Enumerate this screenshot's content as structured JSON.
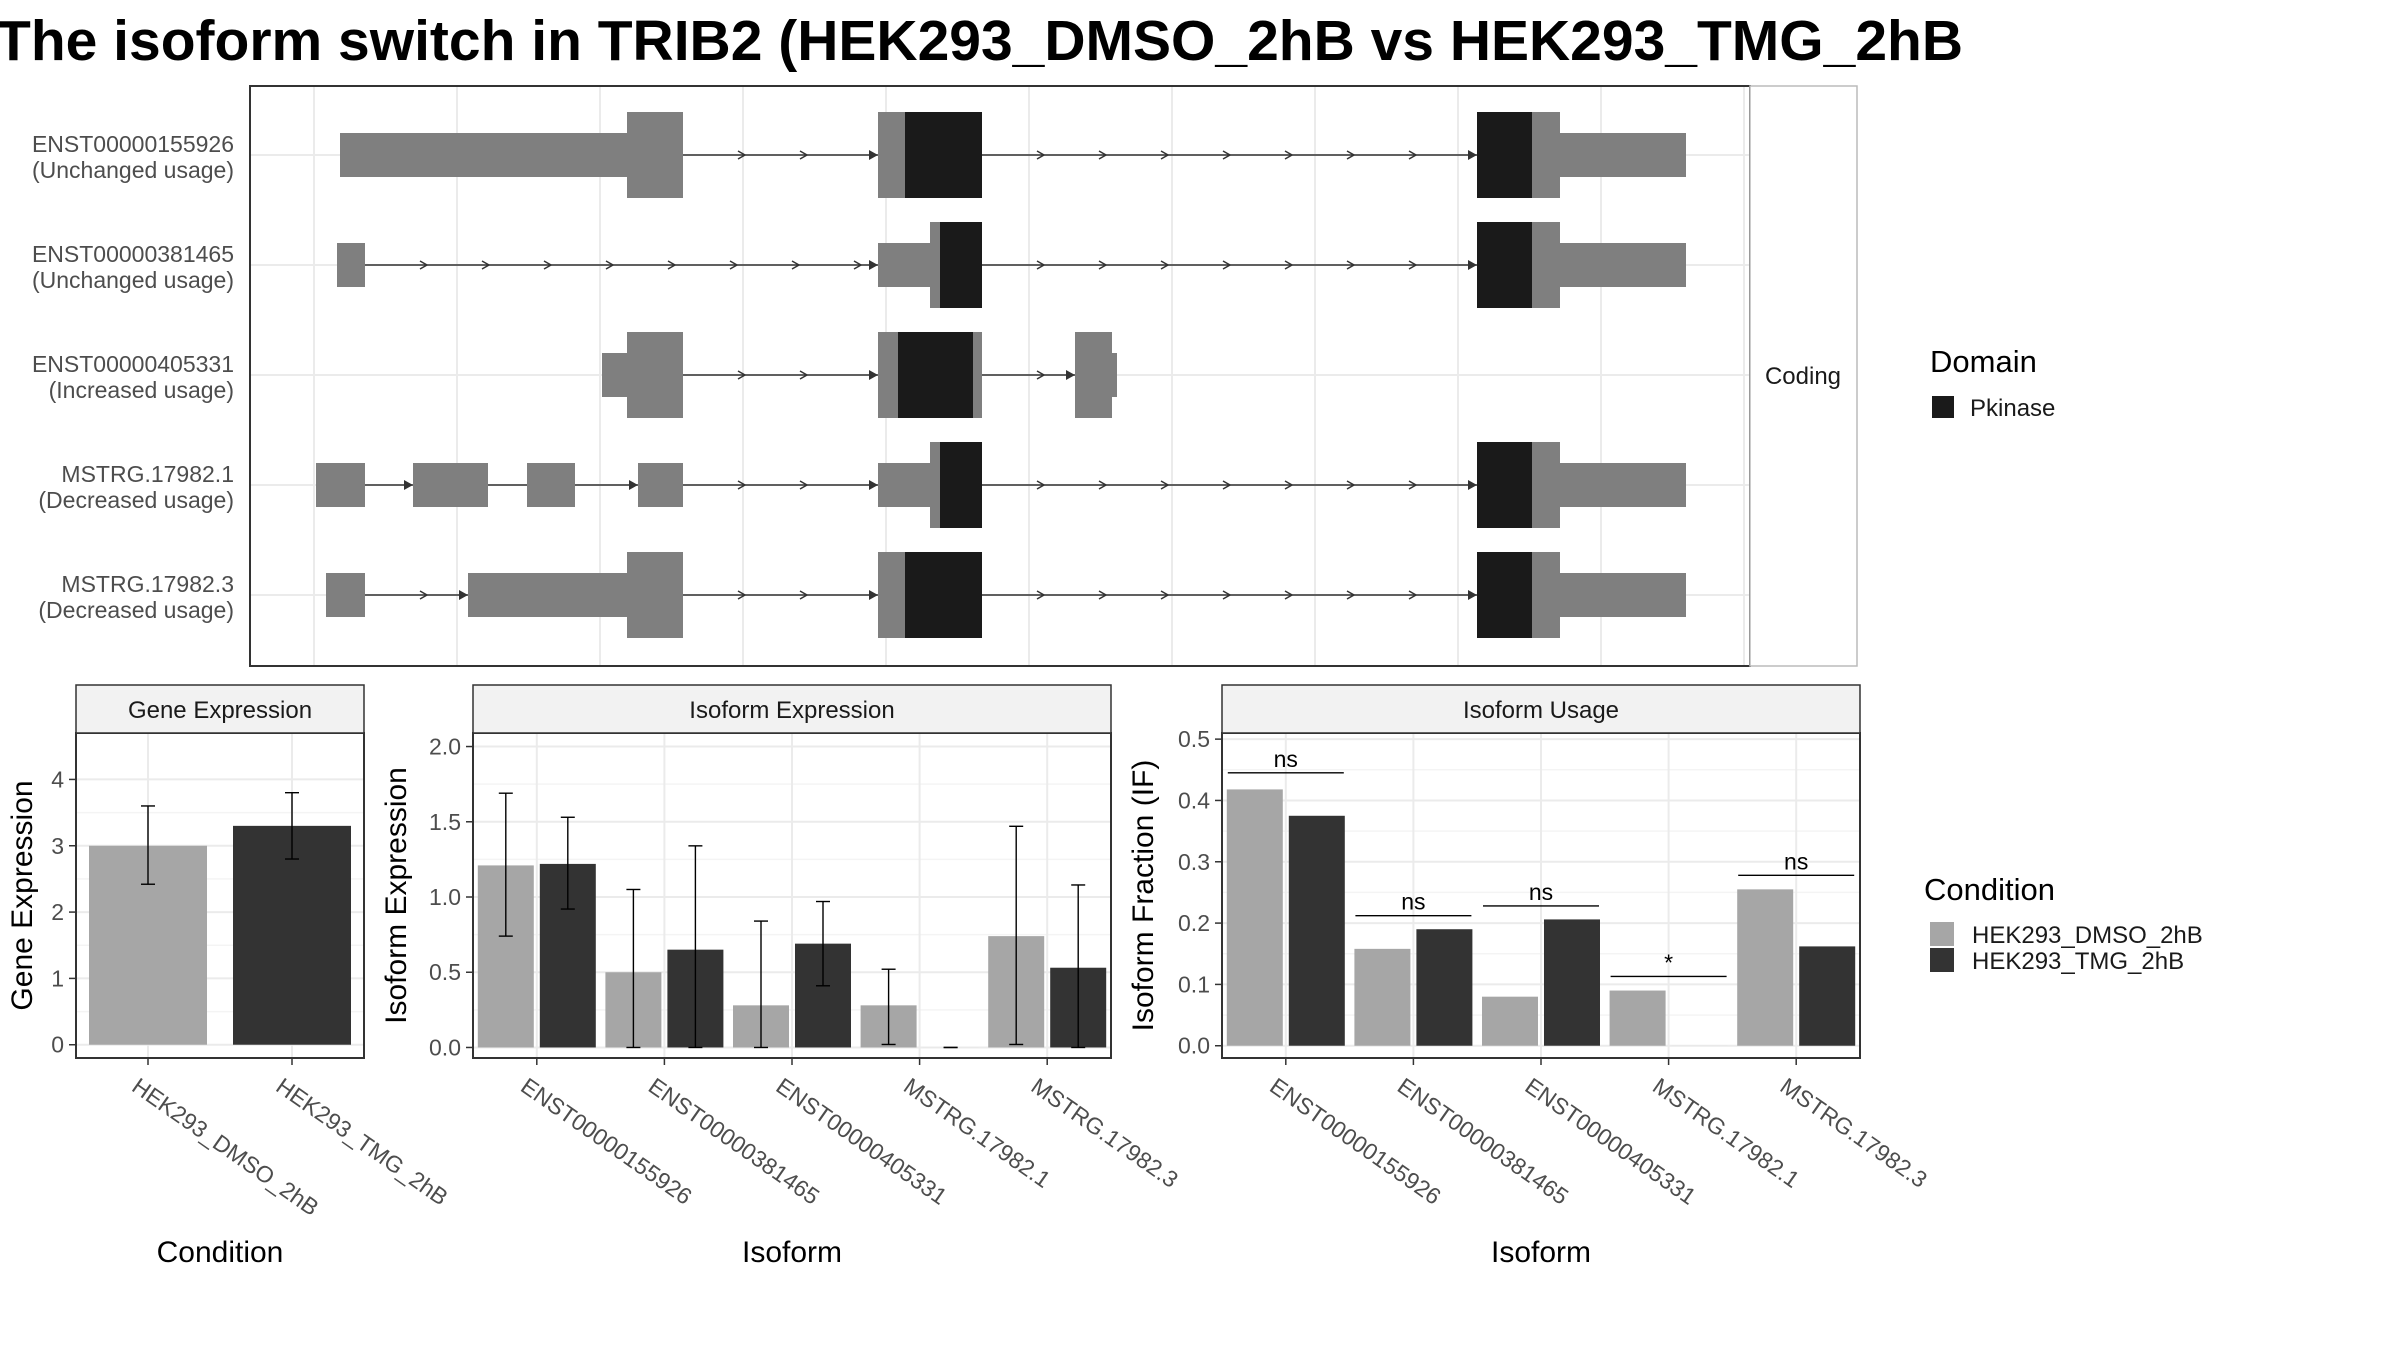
{
  "figure_title": "The isoform switch in TRIB2 (HEK293_DMSO_2hB vs HEK293_TMG_2hB",
  "colors": {
    "dmso": "#a6a6a6",
    "tmg": "#333333",
    "noncoding_exon": "#7f7f7f",
    "domain_pkinase": "#1a1a1a",
    "grid": "#ebebeb",
    "panel_border": "#333333",
    "strip_fill": "#f2f2f2"
  },
  "structure_panel": {
    "facet_label": "Coding",
    "isoforms": [
      {
        "id": "ENST00000155926",
        "label": "ENST00000155926",
        "usage": "(Unchanged usage)"
      },
      {
        "id": "ENST00000381465",
        "label": "ENST00000381465",
        "usage": "(Unchanged usage)"
      },
      {
        "id": "ENST00000405331",
        "label": "ENST00000405331",
        "usage": "(Increased usage)"
      },
      {
        "id": "MSTRG.17982.1",
        "label": "MSTRG.17982.1",
        "usage": "(Decreased usage)"
      },
      {
        "id": "MSTRG.17982.3",
        "label": "MSTRG.17982.3",
        "usage": "(Decreased usage)"
      }
    ],
    "legend": {
      "title": "Domain",
      "items": [
        {
          "name": "Pkinase",
          "color": "#1a1a1a"
        }
      ]
    }
  },
  "chart_data": [
    {
      "type": "bar",
      "title": "Gene Expression",
      "xlabel": "Condition",
      "ylabel": "Gene Expression",
      "categories": [
        "HEK293_DMSO_2hB",
        "HEK293_TMG_2hB"
      ],
      "values": [
        3.0,
        3.3
      ],
      "error_low": [
        2.42,
        2.8
      ],
      "error_high": [
        3.6,
        3.8
      ],
      "ylim": [
        -0.2,
        4.7
      ],
      "yticks": [
        "0",
        "1",
        "2",
        "3",
        "4"
      ],
      "grid": true
    },
    {
      "type": "bar",
      "title": "Isoform Expression",
      "xlabel": "Isoform",
      "ylabel": "Isoform Expression",
      "categories": [
        "ENST00000155926",
        "ENST00000381465",
        "ENST00000405331",
        "MSTRG.17982.1",
        "MSTRG.17982.3"
      ],
      "series": [
        {
          "name": "HEK293_DMSO_2hB",
          "values": [
            1.21,
            0.5,
            0.28,
            0.28,
            0.74
          ],
          "error_low": [
            0.74,
            0.0,
            0.0,
            0.02,
            0.02
          ],
          "error_high": [
            1.69,
            1.05,
            0.84,
            0.52,
            1.47
          ]
        },
        {
          "name": "HEK293_TMG_2hB",
          "values": [
            1.22,
            0.65,
            0.69,
            0.0,
            0.53
          ],
          "error_low": [
            0.92,
            0.0,
            0.41,
            0.0,
            0.0
          ],
          "error_high": [
            1.53,
            1.34,
            0.97,
            0.0,
            1.08
          ]
        }
      ],
      "ylim": [
        -0.07,
        2.09
      ],
      "yticks": [
        "0.0",
        "0.5",
        "1.0",
        "1.5",
        "2.0"
      ],
      "grid": true
    },
    {
      "type": "bar",
      "title": "Isoform Usage",
      "xlabel": "Isoform",
      "ylabel": "Isoform Fraction (IF)",
      "categories": [
        "ENST00000155926",
        "ENST00000381465",
        "ENST00000405331",
        "MSTRG.17982.1",
        "MSTRG.17982.3"
      ],
      "series": [
        {
          "name": "HEK293_DMSO_2hB",
          "values": [
            0.418,
            0.158,
            0.08,
            0.09,
            0.255
          ]
        },
        {
          "name": "HEK293_TMG_2hB",
          "values": [
            0.375,
            0.19,
            0.206,
            0.0,
            0.162
          ]
        }
      ],
      "significance": [
        "ns",
        "ns",
        "ns",
        "*",
        "ns"
      ],
      "significance_y": [
        0.445,
        0.212,
        0.228,
        0.113,
        0.278
      ],
      "ylim": [
        -0.02,
        0.51
      ],
      "yticks": [
        "0.0",
        "0.1",
        "0.2",
        "0.3",
        "0.4",
        "0.5"
      ],
      "grid": true
    }
  ],
  "condition_legend": {
    "title": "Condition",
    "items": [
      {
        "name": "HEK293_DMSO_2hB",
        "color": "#a6a6a6"
      },
      {
        "name": "HEK293_TMG_2hB",
        "color": "#333333"
      }
    ]
  }
}
